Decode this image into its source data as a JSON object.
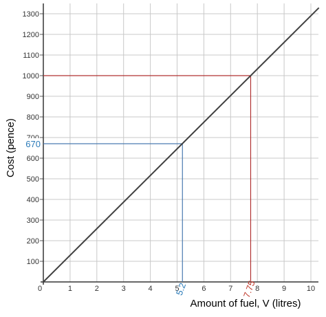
{
  "chart_data": {
    "type": "line",
    "xlabel": "Amount of fuel, V (litres)",
    "ylabel": "Cost (pence)",
    "xlim": [
      0,
      10.3
    ],
    "ylim": [
      0,
      1340
    ],
    "x_ticks": [
      {
        "value": 0,
        "label": "0"
      },
      {
        "value": 1,
        "label": "1"
      },
      {
        "value": 2,
        "label": "2"
      },
      {
        "value": 3,
        "label": "3"
      },
      {
        "value": 4,
        "label": "4"
      },
      {
        "value": 5,
        "label": "5"
      },
      {
        "value": 6,
        "label": "6"
      },
      {
        "value": 7,
        "label": "7"
      },
      {
        "value": 8,
        "label": "8"
      },
      {
        "value": 9,
        "label": "9"
      },
      {
        "value": 10,
        "label": "10"
      }
    ],
    "y_ticks": [
      {
        "value": 100,
        "label": "100"
      },
      {
        "value": 200,
        "label": "200"
      },
      {
        "value": 300,
        "label": "300"
      },
      {
        "value": 400,
        "label": "400"
      },
      {
        "value": 500,
        "label": "500"
      },
      {
        "value": 600,
        "label": "600"
      },
      {
        "value": 700,
        "label": "700"
      },
      {
        "value": 800,
        "label": "800"
      },
      {
        "value": 900,
        "label": "900"
      },
      {
        "value": 1000,
        "label": "1000"
      },
      {
        "value": 1100,
        "label": "1100"
      },
      {
        "value": 1200,
        "label": "1200"
      },
      {
        "value": 1300,
        "label": "1300"
      }
    ],
    "grid": true,
    "series": [
      {
        "color": "#404040",
        "x": [
          0,
          10.3
        ],
        "y": [
          0,
          1329
        ]
      }
    ],
    "annotations": [
      {
        "x": 5.2,
        "y": 670,
        "color": "#4a7bb0",
        "x_label": "5.2",
        "y_label": "670",
        "label_color": "#2b7bb9"
      },
      {
        "x": 7.75,
        "y": 1000,
        "color": "#b03030",
        "x_label": "7.75",
        "y_label": "",
        "label_color": "#c0392b"
      }
    ]
  }
}
